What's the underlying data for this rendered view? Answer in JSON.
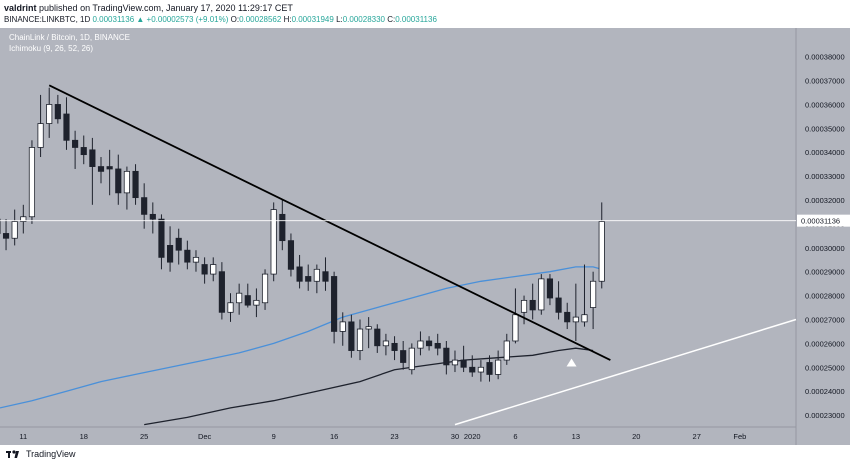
{
  "header": {
    "author": "valdrint",
    "publish_text": "published on TradingView.com, January 17, 2020 11:29:17 CET",
    "symbol": "BINANCE:LINKBTC, 1D",
    "last": "0.00031136",
    "change": "▲ +0.00002573 (+9.01%)",
    "o_label": "O:",
    "o": "0.00028562",
    "h_label": "H:",
    "h": "0.00031949",
    "l_label": "L:",
    "l": "0.00028330",
    "c_label": "C:",
    "c": "0.00031136"
  },
  "legend": {
    "title": "ChainLink / Bitcoin, 1D, BINANCE",
    "indicator": "Ichimoku (9, 26, 52, 26)"
  },
  "footer": {
    "brand": "TradingView"
  },
  "colors": {
    "plot_bg": "#b2b5be",
    "up_candle": "#ffffff",
    "down_candle": "#1e222d",
    "wick": "#1e222d",
    "blue_line": "#4a90d9",
    "black_line": "#1e222d",
    "trend_down": "#000000",
    "trend_up": "#ffffff",
    "price_tag_bg": "#ffffff"
  },
  "chart_data": {
    "type": "candlestick",
    "y_ticks": [
      "0.00023000",
      "0.00024000",
      "0.00025000",
      "0.00026000",
      "0.00027000",
      "0.00028000",
      "0.00029000",
      "0.00030000",
      "0.00031000",
      "0.00032000",
      "0.00033000",
      "0.00034000",
      "0.00035000",
      "0.00036000",
      "0.00037000",
      "0.00038000"
    ],
    "ylim": [
      0.000225,
      0.000392
    ],
    "x_ticks": [
      {
        "label": "11",
        "day": 11
      },
      {
        "label": "18",
        "day": 18
      },
      {
        "label": "25",
        "day": 25
      },
      {
        "label": "Dec",
        "day": 32
      },
      {
        "label": "9",
        "day": 40
      },
      {
        "label": "16",
        "day": 47
      },
      {
        "label": "23",
        "day": 54
      },
      {
        "label": "30",
        "day": 61
      },
      {
        "label": "2020",
        "day": 63
      },
      {
        "label": "6",
        "day": 68
      },
      {
        "label": "13",
        "day": 75
      },
      {
        "label": "20",
        "day": 82
      },
      {
        "label": "27",
        "day": 89
      },
      {
        "label": "Feb",
        "day": 94
      }
    ],
    "x_range": [
      8.3,
      100.5
    ],
    "current_price": "0.00031136",
    "current_value": 0.00031136,
    "candles": [
      {
        "d": 8,
        "o": 0.000312,
        "h": 0.000318,
        "l": 0.000302,
        "c": 0.000306
      },
      {
        "d": 9,
        "o": 0.000306,
        "h": 0.000312,
        "l": 0.000299,
        "c": 0.000304
      },
      {
        "d": 10,
        "o": 0.000304,
        "h": 0.000316,
        "l": 0.000301,
        "c": 0.000311
      },
      {
        "d": 11,
        "o": 0.000311,
        "h": 0.000318,
        "l": 0.000306,
        "c": 0.000313
      },
      {
        "d": 12,
        "o": 0.000313,
        "h": 0.000345,
        "l": 0.00031,
        "c": 0.000342
      },
      {
        "d": 13,
        "o": 0.000342,
        "h": 0.000364,
        "l": 0.000338,
        "c": 0.000352
      },
      {
        "d": 14,
        "o": 0.000352,
        "h": 0.000367,
        "l": 0.000346,
        "c": 0.00036
      },
      {
        "d": 15,
        "o": 0.00036,
        "h": 0.000364,
        "l": 0.000352,
        "c": 0.000354
      },
      {
        "d": 16,
        "o": 0.000356,
        "h": 0.000363,
        "l": 0.000341,
        "c": 0.000345
      },
      {
        "d": 17,
        "o": 0.000345,
        "h": 0.000349,
        "l": 0.000333,
        "c": 0.000342
      },
      {
        "d": 18,
        "o": 0.000342,
        "h": 0.000347,
        "l": 0.000335,
        "c": 0.000339
      },
      {
        "d": 19,
        "o": 0.000341,
        "h": 0.000346,
        "l": 0.000318,
        "c": 0.000334
      },
      {
        "d": 20,
        "o": 0.000334,
        "h": 0.000338,
        "l": 0.000327,
        "c": 0.000332
      },
      {
        "d": 21,
        "o": 0.000334,
        "h": 0.000341,
        "l": 0.000322,
        "c": 0.000333
      },
      {
        "d": 22,
        "o": 0.000333,
        "h": 0.000339,
        "l": 0.000318,
        "c": 0.000323
      },
      {
        "d": 23,
        "o": 0.000323,
        "h": 0.000334,
        "l": 0.000316,
        "c": 0.000332
      },
      {
        "d": 24,
        "o": 0.000332,
        "h": 0.000335,
        "l": 0.000318,
        "c": 0.000321
      },
      {
        "d": 25,
        "o": 0.000321,
        "h": 0.000327,
        "l": 0.000308,
        "c": 0.000314
      },
      {
        "d": 26,
        "o": 0.000314,
        "h": 0.000319,
        "l": 0.000306,
        "c": 0.000312
      },
      {
        "d": 27,
        "o": 0.000312,
        "h": 0.000314,
        "l": 0.000291,
        "c": 0.000296
      },
      {
        "d": 28,
        "o": 0.000301,
        "h": 0.000309,
        "l": 0.00029,
        "c": 0.000294
      },
      {
        "d": 29,
        "o": 0.000304,
        "h": 0.000308,
        "l": 0.000293,
        "c": 0.000299
      },
      {
        "d": 30,
        "o": 0.000299,
        "h": 0.000303,
        "l": 0.000291,
        "c": 0.000294
      },
      {
        "d": 31,
        "o": 0.000294,
        "h": 0.000299,
        "l": 0.00029,
        "c": 0.000296
      },
      {
        "d": 32,
        "o": 0.000293,
        "h": 0.000296,
        "l": 0.000285,
        "c": 0.000289
      },
      {
        "d": 33,
        "o": 0.000289,
        "h": 0.000296,
        "l": 0.000286,
        "c": 0.000293
      },
      {
        "d": 34,
        "o": 0.00029,
        "h": 0.000294,
        "l": 0.00027,
        "c": 0.000273
      },
      {
        "d": 35,
        "o": 0.000273,
        "h": 0.000281,
        "l": 0.000269,
        "c": 0.000277
      },
      {
        "d": 36,
        "o": 0.000277,
        "h": 0.000285,
        "l": 0.000272,
        "c": 0.000281
      },
      {
        "d": 37,
        "o": 0.00028,
        "h": 0.000285,
        "l": 0.000275,
        "c": 0.000276
      },
      {
        "d": 38,
        "o": 0.000276,
        "h": 0.000283,
        "l": 0.000271,
        "c": 0.000278
      },
      {
        "d": 39,
        "o": 0.000277,
        "h": 0.000291,
        "l": 0.000274,
        "c": 0.000289
      },
      {
        "d": 40,
        "o": 0.000289,
        "h": 0.000319,
        "l": 0.000286,
        "c": 0.000316
      },
      {
        "d": 41,
        "o": 0.000314,
        "h": 0.00032,
        "l": 0.000299,
        "c": 0.000303
      },
      {
        "d": 42,
        "o": 0.000303,
        "h": 0.000306,
        "l": 0.000288,
        "c": 0.000291
      },
      {
        "d": 43,
        "o": 0.000292,
        "h": 0.000297,
        "l": 0.000283,
        "c": 0.000286
      },
      {
        "d": 44,
        "o": 0.000288,
        "h": 0.000293,
        "l": 0.000282,
        "c": 0.000286
      },
      {
        "d": 45,
        "o": 0.000286,
        "h": 0.000293,
        "l": 0.000281,
        "c": 0.000291
      },
      {
        "d": 46,
        "o": 0.00029,
        "h": 0.000296,
        "l": 0.000282,
        "c": 0.000286
      },
      {
        "d": 47,
        "o": 0.000288,
        "h": 0.00029,
        "l": 0.00026,
        "c": 0.000265
      },
      {
        "d": 48,
        "o": 0.000265,
        "h": 0.000273,
        "l": 0.000259,
        "c": 0.000269
      },
      {
        "d": 49,
        "o": 0.000269,
        "h": 0.000272,
        "l": 0.000254,
        "c": 0.000257
      },
      {
        "d": 50,
        "o": 0.000257,
        "h": 0.00027,
        "l": 0.000253,
        "c": 0.000266
      },
      {
        "d": 51,
        "o": 0.000266,
        "h": 0.000271,
        "l": 0.000258,
        "c": 0.000267
      },
      {
        "d": 52,
        "o": 0.000266,
        "h": 0.000268,
        "l": 0.000256,
        "c": 0.000259
      },
      {
        "d": 53,
        "o": 0.000259,
        "h": 0.000264,
        "l": 0.000255,
        "c": 0.000261
      },
      {
        "d": 54,
        "o": 0.00026,
        "h": 0.000263,
        "l": 0.000253,
        "c": 0.000257
      },
      {
        "d": 55,
        "o": 0.000257,
        "h": 0.000261,
        "l": 0.000249,
        "c": 0.000252
      },
      {
        "d": 56,
        "o": 0.000249,
        "h": 0.00026,
        "l": 0.000247,
        "c": 0.000258
      },
      {
        "d": 57,
        "o": 0.000258,
        "h": 0.000265,
        "l": 0.000255,
        "c": 0.000261
      },
      {
        "d": 58,
        "o": 0.000261,
        "h": 0.000263,
        "l": 0.000257,
        "c": 0.000259
      },
      {
        "d": 59,
        "o": 0.00026,
        "h": 0.000264,
        "l": 0.000255,
        "c": 0.000258
      },
      {
        "d": 60,
        "o": 0.000258,
        "h": 0.000261,
        "l": 0.000247,
        "c": 0.000251
      },
      {
        "d": 61,
        "o": 0.000251,
        "h": 0.000257,
        "l": 0.000248,
        "c": 0.000253
      },
      {
        "d": 62,
        "o": 0.000253,
        "h": 0.000259,
        "l": 0.000248,
        "c": 0.00025
      },
      {
        "d": 63,
        "o": 0.00025,
        "h": 0.000255,
        "l": 0.000246,
        "c": 0.000248
      },
      {
        "d": 64,
        "o": 0.000248,
        "h": 0.000253,
        "l": 0.000244,
        "c": 0.00025
      },
      {
        "d": 65,
        "o": 0.000252,
        "h": 0.000255,
        "l": 0.000244,
        "c": 0.000247
      },
      {
        "d": 66,
        "o": 0.000247,
        "h": 0.000257,
        "l": 0.000245,
        "c": 0.000253
      },
      {
        "d": 67,
        "o": 0.000253,
        "h": 0.000264,
        "l": 0.000251,
        "c": 0.000261
      },
      {
        "d": 68,
        "o": 0.000261,
        "h": 0.000283,
        "l": 0.00026,
        "c": 0.000272
      },
      {
        "d": 69,
        "o": 0.000273,
        "h": 0.00028,
        "l": 0.000268,
        "c": 0.000278
      },
      {
        "d": 70,
        "o": 0.000278,
        "h": 0.000285,
        "l": 0.00027,
        "c": 0.000274
      },
      {
        "d": 71,
        "o": 0.000274,
        "h": 0.000289,
        "l": 0.000272,
        "c": 0.000287
      },
      {
        "d": 72,
        "o": 0.000287,
        "h": 0.000289,
        "l": 0.000276,
        "c": 0.000279
      },
      {
        "d": 73,
        "o": 0.000279,
        "h": 0.000286,
        "l": 0.00027,
        "c": 0.000273
      },
      {
        "d": 74,
        "o": 0.000273,
        "h": 0.000277,
        "l": 0.000266,
        "c": 0.000269
      },
      {
        "d": 75,
        "o": 0.000269,
        "h": 0.000285,
        "l": 0.000261,
        "c": 0.000271
      },
      {
        "d": 76,
        "o": 0.000269,
        "h": 0.000293,
        "l": 0.000267,
        "c": 0.000272
      },
      {
        "d": 77,
        "o": 0.000275,
        "h": 0.00029,
        "l": 0.000266,
        "c": 0.000286
      },
      {
        "d": 78,
        "o": 0.000286,
        "h": 0.000319,
        "l": 0.000283,
        "c": 0.000311
      }
    ],
    "ichimoku_blue": [
      [
        8.3,
        0.000233
      ],
      [
        12,
        0.000236
      ],
      [
        16,
        0.00024
      ],
      [
        20,
        0.000244
      ],
      [
        24,
        0.000247
      ],
      [
        28,
        0.00025
      ],
      [
        32,
        0.000253
      ],
      [
        36,
        0.000256
      ],
      [
        40,
        0.00026
      ],
      [
        44,
        0.000265
      ],
      [
        48,
        0.000271
      ],
      [
        52,
        0.000275
      ],
      [
        56,
        0.000279
      ],
      [
        60,
        0.000283
      ],
      [
        64,
        0.000286
      ],
      [
        68,
        0.000288
      ],
      [
        72,
        0.00029
      ],
      [
        75,
        0.000292
      ],
      [
        77,
        0.000292
      ],
      [
        78,
        0.000291
      ]
    ],
    "ichimoku_black": [
      [
        25,
        0.000226
      ],
      [
        30,
        0.000229
      ],
      [
        35,
        0.000233
      ],
      [
        40,
        0.000236
      ],
      [
        45,
        0.00024
      ],
      [
        50,
        0.000244
      ],
      [
        54,
        0.000249
      ],
      [
        58,
        0.000251
      ],
      [
        62,
        0.000253
      ],
      [
        66,
        0.000254
      ],
      [
        70,
        0.000255
      ],
      [
        73,
        0.000257
      ],
      [
        75,
        0.000258
      ],
      [
        77,
        0.000257
      ]
    ],
    "trendline_down": [
      [
        14,
        0.000368
      ],
      [
        79,
        0.000253
      ]
    ],
    "trendline_up": [
      [
        61,
        0.000226
      ],
      [
        100.5,
        0.00027
      ]
    ],
    "marker_triangle": {
      "d": 74.5,
      "v": 0.000252
    }
  }
}
